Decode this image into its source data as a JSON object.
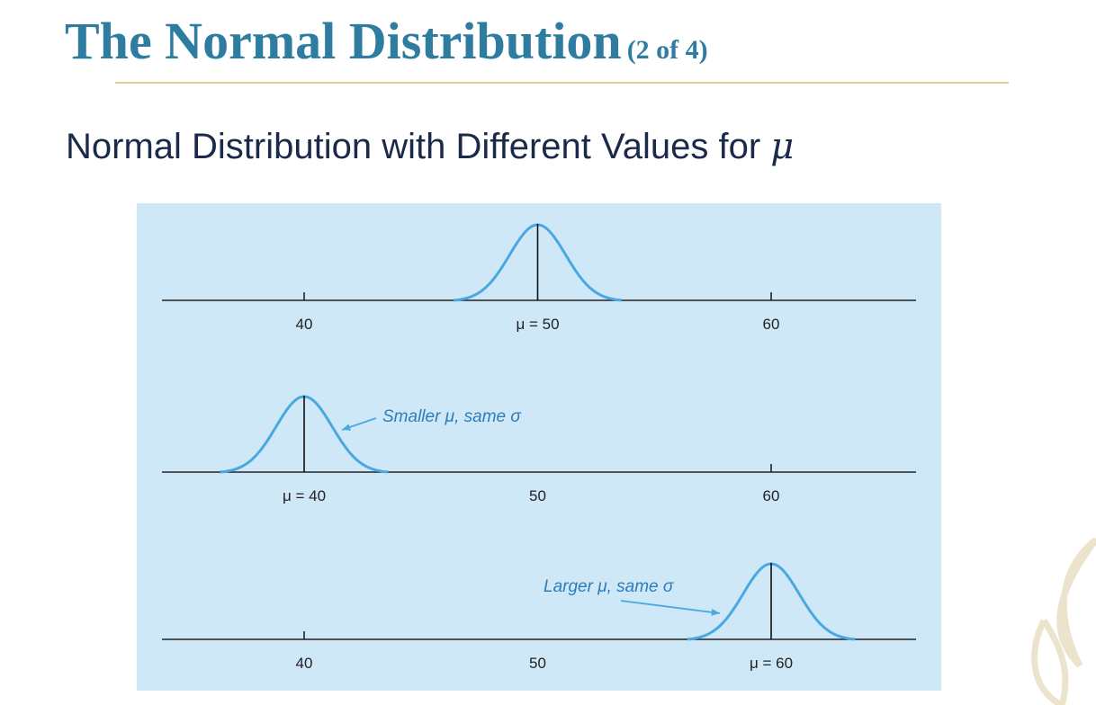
{
  "slide": {
    "title": "The Normal Distribution",
    "title_suffix": "(2 of 4)",
    "subtitle": "Normal Distribution with Different Values for",
    "subtitle_symbol": "μ"
  },
  "colors": {
    "title": "#2e7da1",
    "curve": "#4aa8e0",
    "panel": "#cfe8f8",
    "annotation": "#2e7db8"
  },
  "chart_data": [
    {
      "type": "line",
      "mean": 50,
      "sd": 1.2,
      "xlim": [
        33.9,
        66.2
      ],
      "ticks": [
        40,
        60
      ],
      "tick_labels": [
        "40",
        "μ = 50",
        "60"
      ],
      "label_values": [
        40,
        50,
        60
      ],
      "annotation": ""
    },
    {
      "type": "line",
      "mean": 40,
      "sd": 1.2,
      "xlim": [
        33.9,
        66.2
      ],
      "ticks": [
        60
      ],
      "tick_labels": [
        "μ = 40",
        "50",
        "60"
      ],
      "label_values": [
        40,
        50,
        60
      ],
      "annotation": "Smaller μ, same σ"
    },
    {
      "type": "line",
      "mean": 60,
      "sd": 1.2,
      "xlim": [
        33.9,
        66.2
      ],
      "ticks": [
        40
      ],
      "tick_labels": [
        "40",
        "50",
        "μ = 60"
      ],
      "label_values": [
        40,
        50,
        60
      ],
      "annotation": "Larger μ, same σ"
    }
  ]
}
